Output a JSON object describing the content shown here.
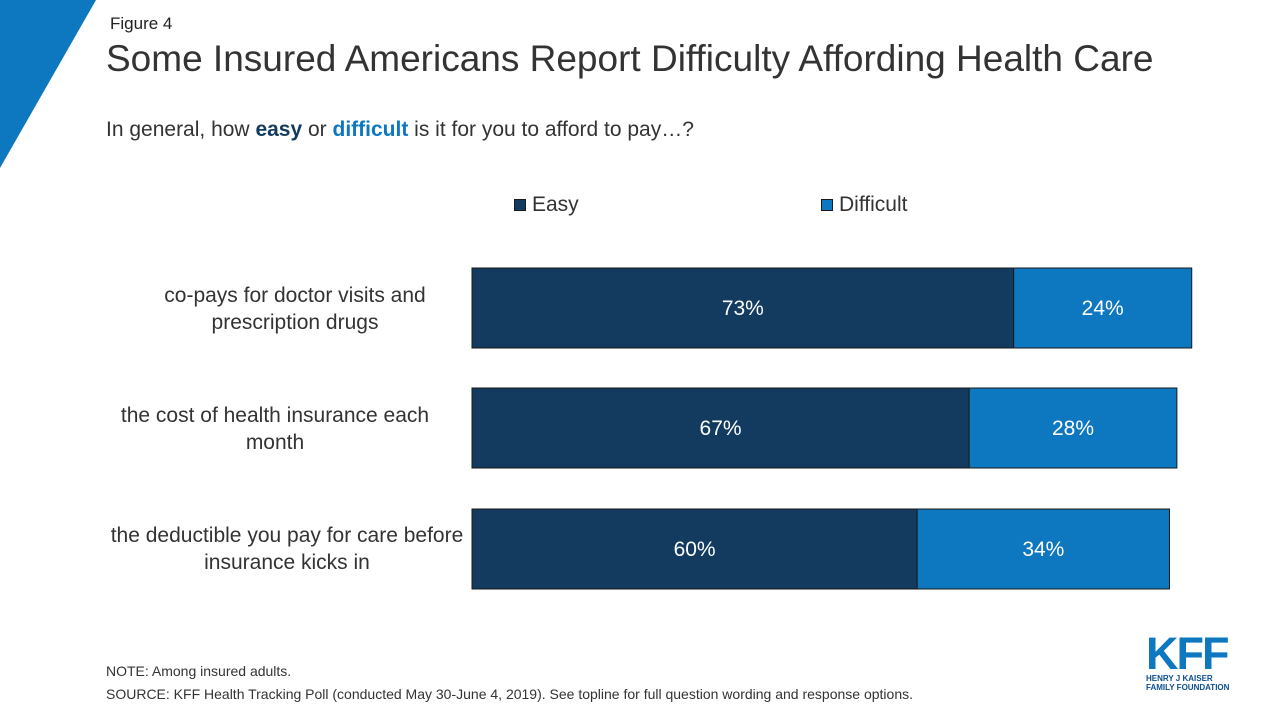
{
  "figure_label": "Figure 4",
  "title": "Some Insured Americans Report Difficulty Affording Health Care",
  "question": {
    "prefix": "In general, how ",
    "easy_word": "easy",
    "middle": " or ",
    "difficult_word": "difficult",
    "suffix": " is it for you to afford to pay…?"
  },
  "colors": {
    "easy": "#123b5f",
    "difficult": "#0d77c0",
    "accent": "#0d77c0"
  },
  "chart_data": {
    "type": "bar",
    "orientation": "horizontal",
    "stacked": true,
    "categories": [
      "co-pays for doctor visits and prescription drugs",
      "the cost of health insurance each month",
      "the deductible you pay for care before insurance kicks in"
    ],
    "series": [
      {
        "name": "Easy",
        "values": [
          73,
          67,
          60
        ],
        "labels": [
          "73%",
          "67%",
          "60%"
        ]
      },
      {
        "name": "Difficult",
        "values": [
          24,
          28,
          34
        ],
        "labels": [
          "24%",
          "28%",
          "34%"
        ]
      }
    ],
    "xlim": [
      0,
      100
    ],
    "title": "Some Insured Americans Report Difficulty Affording Health Care",
    "legend": "top",
    "grid": false
  },
  "note": "NOTE: Among insured adults.",
  "source": "SOURCE: KFF Health Tracking Poll (conducted May 30-June 4, 2019). See topline for full question wording and response options.",
  "logo": {
    "mark": "KFF",
    "line1": "HENRY J KAISER",
    "line2": "FAMILY FOUNDATION"
  }
}
